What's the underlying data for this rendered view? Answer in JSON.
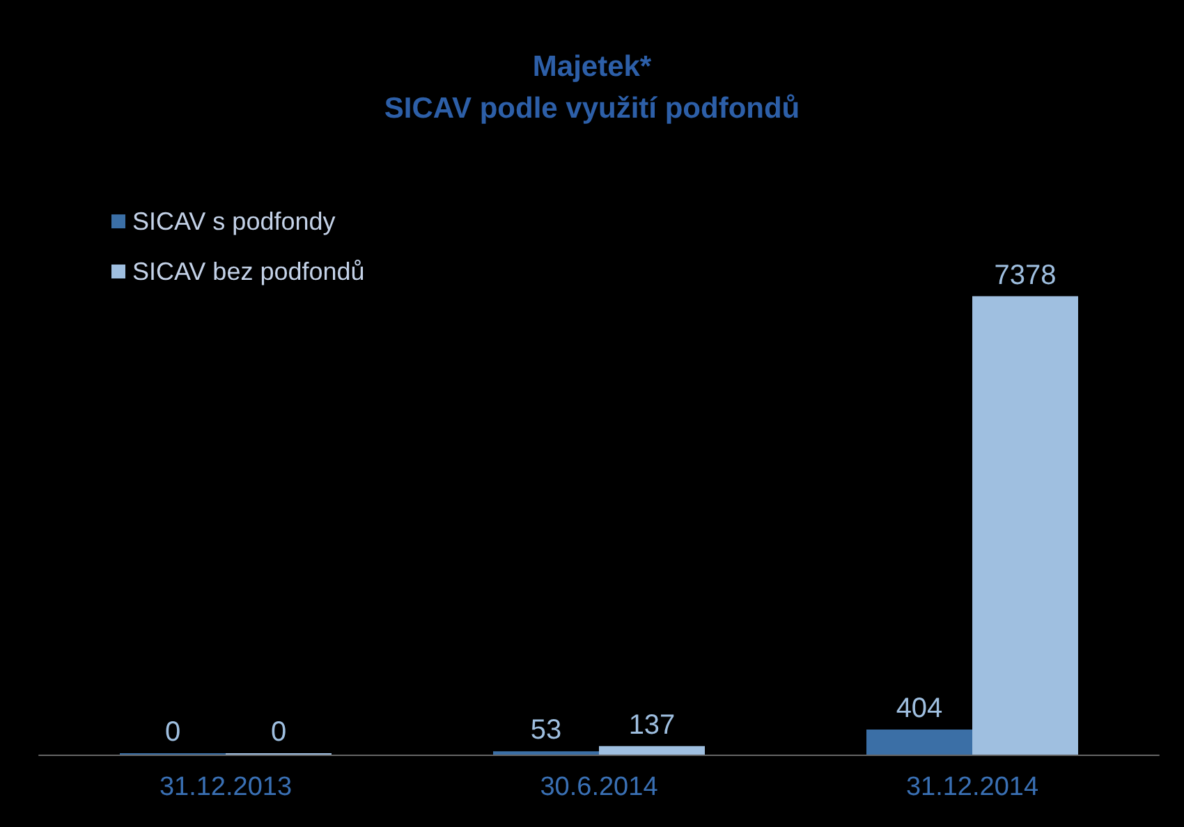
{
  "chart_data": {
    "type": "bar",
    "title": "Majetek*\nSICAV podle využití podfondů",
    "categories": [
      "31.12.2013",
      "30.6.2014",
      "31.12.2014"
    ],
    "series": [
      {
        "name": "SICAV s podfondy",
        "color": "#3b6fa6",
        "values": [
          0,
          53,
          404
        ]
      },
      {
        "name": "SICAV bez podfondů",
        "color": "#9fbfe0",
        "values": [
          0,
          137,
          7378
        ]
      }
    ],
    "data_labels": true,
    "legend": "top left"
  }
}
